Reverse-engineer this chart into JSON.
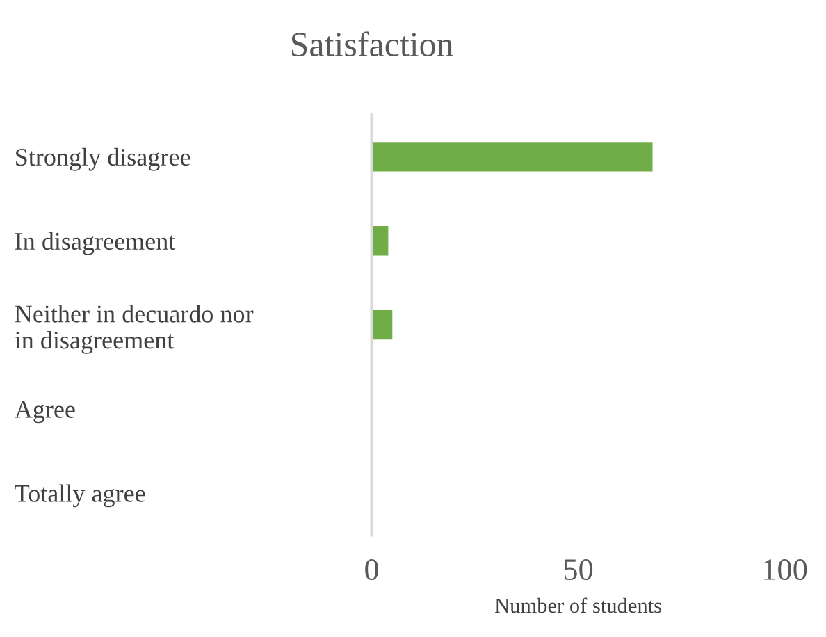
{
  "chart_data": {
    "type": "bar",
    "orientation": "horizontal",
    "title": "Satisfaction",
    "xlabel": "Number of students",
    "categories": [
      "Strongly disagree",
      "In disagreement",
      "Neither in decuardo nor\nin disagreement",
      "Agree",
      "Totally agree"
    ],
    "values": [
      68,
      4,
      5,
      0,
      0
    ],
    "color": "#70ad47",
    "xlim": [
      0,
      100
    ],
    "xticks": [
      0,
      50,
      100
    ],
    "grid": false,
    "legend": false
  }
}
